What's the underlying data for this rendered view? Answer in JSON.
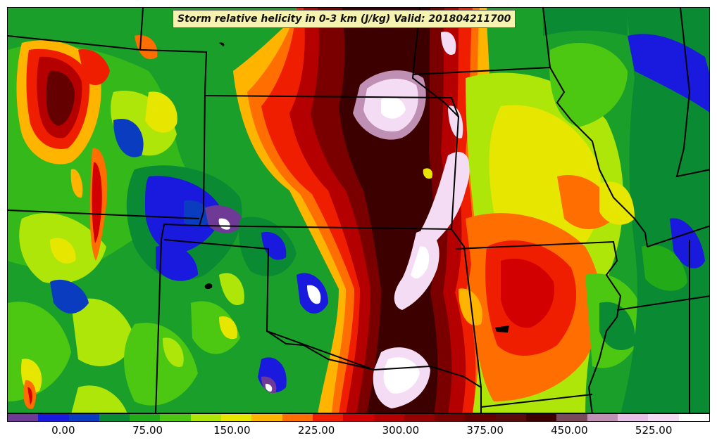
{
  "title": "Storm relative helicity in 0-3 km (J/kg) Valid: 201804211700",
  "colorbar": {
    "colors": [
      "#6e3a96",
      "#1a1adf",
      "#0a3cbf",
      "#0a8a32",
      "#22aa18",
      "#4cc812",
      "#aee60a",
      "#e6e600",
      "#ffb400",
      "#ff6e00",
      "#f01e00",
      "#d20000",
      "#b40000",
      "#960000",
      "#7a0000",
      "#640000",
      "#5a0a0a",
      "#3c0000",
      "#7a4a5a",
      "#c090b4",
      "#e8c0e8",
      "#f4dcf4",
      "#ffffff"
    ],
    "tick_labels": [
      "0.00",
      "75.00",
      "150.00",
      "225.00",
      "300.00",
      "375.00",
      "450.00",
      "525.00"
    ],
    "tick_values": [
      0,
      75,
      150,
      225,
      300,
      375,
      450,
      525
    ],
    "range": [
      -50,
      575
    ],
    "step": 25
  },
  "map": {
    "field": "Storm relative helicity 0-3 km",
    "units": "J/kg",
    "valid_time": "201804211700"
  }
}
